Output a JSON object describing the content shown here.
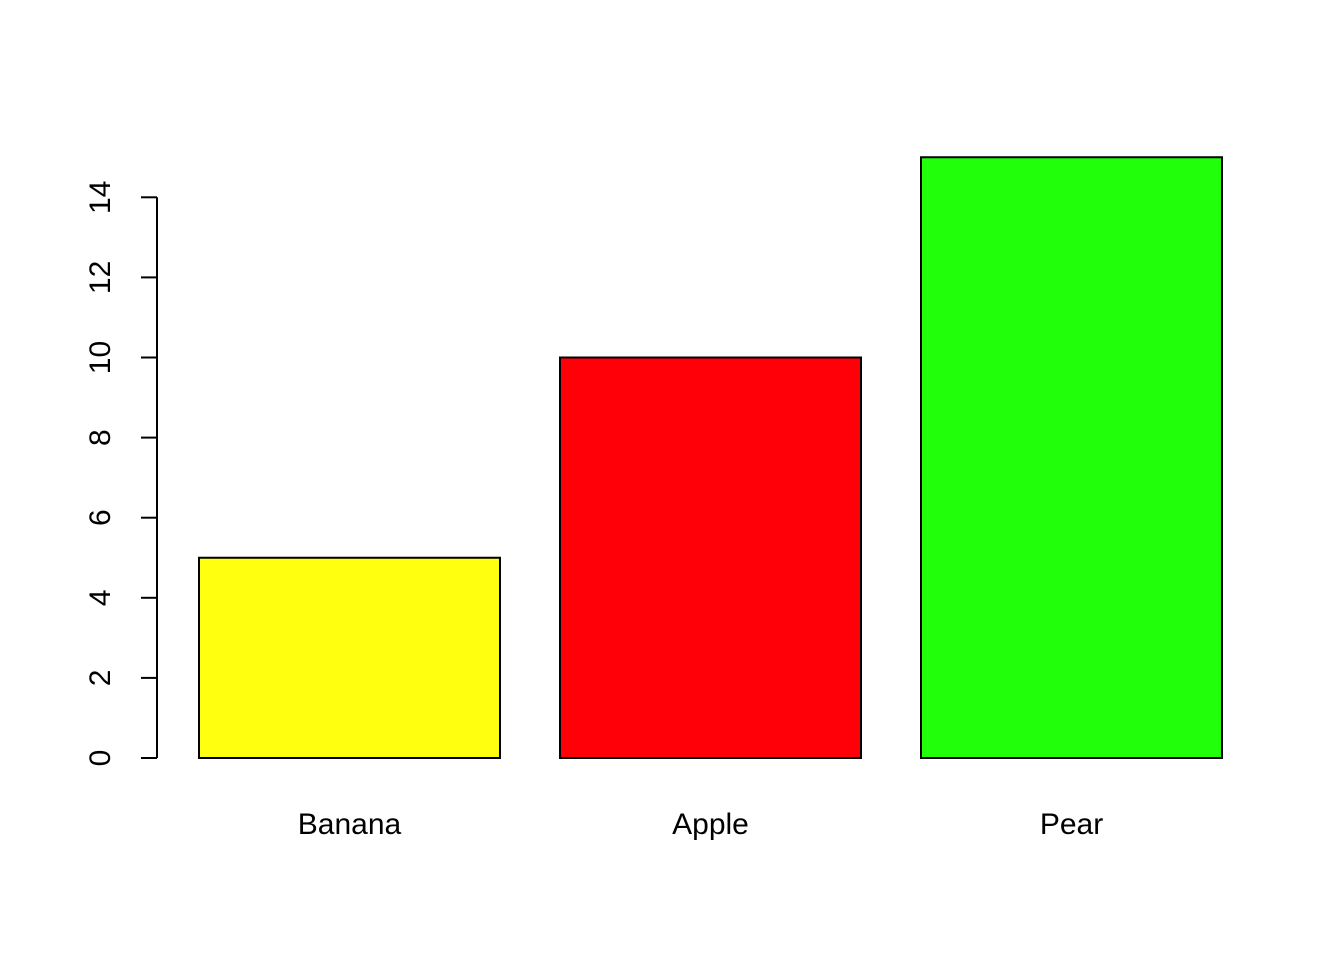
{
  "chart_data": {
    "type": "bar",
    "categories": [
      "Banana",
      "Apple",
      "Pear"
    ],
    "values": [
      5,
      10,
      15
    ],
    "colors": [
      "#FFFF0F",
      "#FF0008",
      "#22FF0A"
    ],
    "border_color": "#000000",
    "title": "",
    "xlabel": "",
    "ylabel": "",
    "ylim": [
      0,
      15
    ],
    "y_ticks": [
      0,
      2,
      4,
      6,
      8,
      10,
      12,
      14
    ],
    "grid": false,
    "legend": "none"
  }
}
